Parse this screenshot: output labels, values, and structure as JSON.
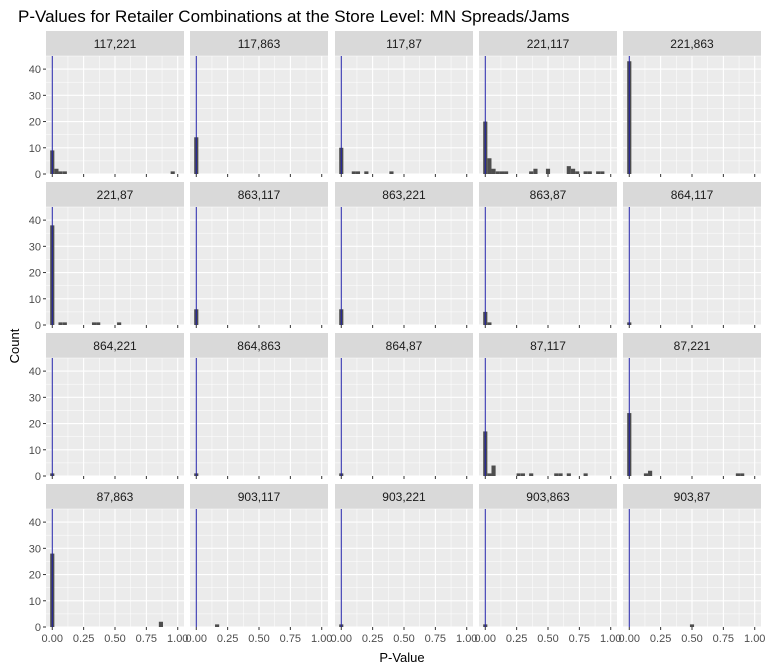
{
  "chart_data": {
    "type": "histogram-facets",
    "title": "P-Values for Retailer Combinations at the Store Level: MN Spreads/Jams",
    "xlabel": "P-Value",
    "ylabel": "Count",
    "xlim": [
      -0.05,
      1.05
    ],
    "ylim": [
      0,
      45
    ],
    "x_ticks": [
      "0.00",
      "0.25",
      "0.50",
      "0.75",
      "1.00"
    ],
    "y_ticks": [
      "0",
      "10",
      "20",
      "30",
      "40"
    ],
    "bin_width": 0.033,
    "reference_line_x": 0,
    "colors": {
      "bar": "#4d4d4d",
      "ref_line": "#1f1fa8",
      "panel": "#ebebeb",
      "strip": "#d9d9d9"
    },
    "facets": [
      {
        "label": "117,221",
        "bins": [
          [
            0.0,
            9
          ],
          [
            0.033,
            2
          ],
          [
            0.066,
            1
          ],
          [
            0.1,
            1
          ],
          [
            0.96,
            1
          ]
        ]
      },
      {
        "label": "117,863",
        "bins": [
          [
            0.0,
            14
          ]
        ]
      },
      {
        "label": "117,87",
        "bins": [
          [
            0.0,
            10
          ],
          [
            0.1,
            1
          ],
          [
            0.133,
            1
          ],
          [
            0.2,
            1
          ],
          [
            0.4,
            1
          ]
        ]
      },
      {
        "label": "221,117",
        "bins": [
          [
            0.0,
            20
          ],
          [
            0.033,
            6
          ],
          [
            0.066,
            2
          ],
          [
            0.1,
            1
          ],
          [
            0.133,
            1
          ],
          [
            0.166,
            1
          ],
          [
            0.366,
            1
          ],
          [
            0.4,
            2
          ],
          [
            0.5,
            2
          ],
          [
            0.666,
            3
          ],
          [
            0.7,
            2
          ],
          [
            0.733,
            1
          ],
          [
            0.8,
            1
          ],
          [
            0.833,
            1
          ],
          [
            0.9,
            1
          ],
          [
            0.933,
            1
          ]
        ]
      },
      {
        "label": "221,863",
        "bins": [
          [
            0.0,
            43
          ]
        ]
      },
      {
        "label": "221,87",
        "bins": [
          [
            0.0,
            38
          ],
          [
            0.066,
            1
          ],
          [
            0.1,
            1
          ],
          [
            0.333,
            1
          ],
          [
            0.366,
            1
          ],
          [
            0.533,
            1
          ]
        ]
      },
      {
        "label": "863,117",
        "bins": [
          [
            0.0,
            6
          ]
        ]
      },
      {
        "label": "863,221",
        "bins": [
          [
            0.0,
            6
          ]
        ]
      },
      {
        "label": "863,87",
        "bins": [
          [
            0.0,
            5
          ],
          [
            0.033,
            1
          ]
        ]
      },
      {
        "label": "864,117",
        "bins": [
          [
            0.0,
            1
          ]
        ]
      },
      {
        "label": "864,221",
        "bins": [
          [
            0.0,
            1
          ]
        ]
      },
      {
        "label": "864,863",
        "bins": [
          [
            0.0,
            1
          ]
        ]
      },
      {
        "label": "864,87",
        "bins": [
          [
            0.0,
            1
          ]
        ]
      },
      {
        "label": "87,117",
        "bins": [
          [
            0.0,
            17
          ],
          [
            0.033,
            1
          ],
          [
            0.066,
            4
          ],
          [
            0.266,
            1
          ],
          [
            0.3,
            1
          ],
          [
            0.366,
            1
          ],
          [
            0.566,
            1
          ],
          [
            0.6,
            1
          ],
          [
            0.666,
            1
          ],
          [
            0.8,
            1
          ]
        ]
      },
      {
        "label": "87,221",
        "bins": [
          [
            0.0,
            24
          ],
          [
            0.133,
            1
          ],
          [
            0.166,
            2
          ],
          [
            0.866,
            1
          ],
          [
            0.9,
            1
          ]
        ]
      },
      {
        "label": "87,863",
        "bins": [
          [
            0.0,
            28
          ],
          [
            0.866,
            2
          ]
        ]
      },
      {
        "label": "903,117",
        "bins": [
          [
            0.166,
            1
          ]
        ]
      },
      {
        "label": "903,221",
        "bins": [
          [
            0.0,
            1
          ]
        ]
      },
      {
        "label": "903,863",
        "bins": [
          [
            0.0,
            1
          ]
        ]
      },
      {
        "label": "903,87",
        "bins": [
          [
            0.5,
            1
          ]
        ]
      }
    ]
  }
}
